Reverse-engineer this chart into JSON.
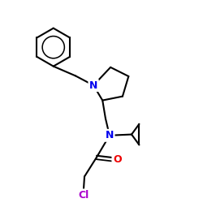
{
  "bg_color": "#ffffff",
  "bond_color": "#000000",
  "bond_width": 1.5,
  "N_color": "#0000ee",
  "O_color": "#ee0000",
  "Cl_color": "#aa00cc",
  "figsize": [
    2.5,
    2.5
  ],
  "dpi": 100,
  "xlim": [
    0,
    10
  ],
  "ylim": [
    0,
    10
  ]
}
